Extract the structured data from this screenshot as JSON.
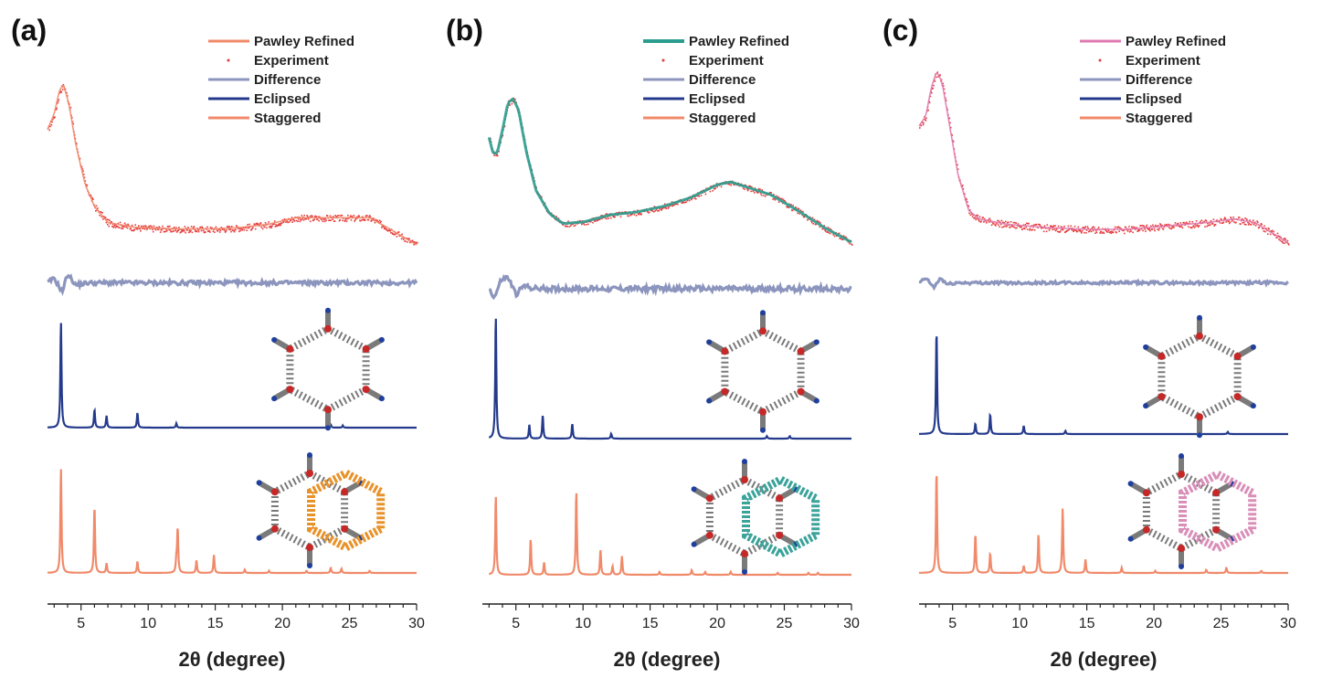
{
  "figure": {
    "xlabel": "2θ (degree)",
    "legend": [
      "Pawley Refined",
      "Experiment",
      "Difference",
      "Eclipsed",
      "Staggered"
    ]
  },
  "chart_data": [
    {
      "panel_label": "(a)",
      "type": "line",
      "xlabel": "2θ (degree)",
      "xlim": [
        2.5,
        30
      ],
      "xticks": [
        5,
        10,
        15,
        20,
        25,
        30
      ],
      "grid": false,
      "legend_placement": "top-center",
      "colors": {
        "pawley": "#f08a6a",
        "experiment": "#e53b3b",
        "difference": "#8c95bd",
        "eclipsed": "#243a8c",
        "staggered": "#f08a6a",
        "stagger_model": "#e8922a"
      },
      "experiment_envelope": {
        "x": [
          2.5,
          3.0,
          3.4,
          3.7,
          4.1,
          4.6,
          5.3,
          6.0,
          7.0,
          9.0,
          12.0,
          15.0,
          17.0,
          19.0,
          21.0,
          23.0,
          25.0,
          26.5,
          28.0,
          29.0,
          30.0
        ],
        "y": [
          0.72,
          0.82,
          0.97,
          1.0,
          0.88,
          0.63,
          0.38,
          0.24,
          0.14,
          0.11,
          0.1,
          0.1,
          0.11,
          0.13,
          0.17,
          0.17,
          0.17,
          0.17,
          0.1,
          0.05,
          0.0
        ]
      },
      "difference_envelope": {
        "x": [
          2.5,
          3.0,
          3.6,
          4.0,
          4.6,
          5.5,
          30.0
        ],
        "y": [
          0.5,
          0.7,
          0.1,
          0.9,
          0.4,
          0.5,
          0.5
        ]
      },
      "eclipsed_peaks": {
        "x": [
          3.5,
          6.0,
          6.9,
          9.2,
          12.1,
          23.6,
          24.5
        ],
        "y": [
          1.0,
          0.17,
          0.11,
          0.14,
          0.04,
          0.03,
          0.02
        ]
      },
      "staggered_peaks": {
        "x": [
          3.5,
          6.0,
          6.9,
          9.2,
          12.1,
          12.2,
          13.6,
          14.9,
          17.2,
          19.0,
          21.8,
          23.6,
          24.4,
          26.5
        ],
        "y": [
          1.0,
          0.64,
          0.09,
          0.11,
          0.12,
          0.42,
          0.12,
          0.17,
          0.03,
          0.02,
          0.02,
          0.05,
          0.04,
          0.02
        ]
      }
    },
    {
      "panel_label": "(b)",
      "type": "line",
      "xlabel": "2θ (degree)",
      "xlim": [
        2.5,
        30
      ],
      "xticks": [
        5,
        10,
        15,
        20,
        25,
        30
      ],
      "grid": false,
      "legend_placement": "top-center",
      "colors": {
        "pawley": "#2a9d8f",
        "experiment": "#e53b3b",
        "difference": "#8c95bd",
        "eclipsed": "#243a8c",
        "staggered": "#f08a6a",
        "stagger_model": "#3aa39a"
      },
      "experiment_envelope": {
        "x": [
          3.0,
          3.3,
          3.6,
          4.0,
          4.4,
          4.8,
          5.2,
          5.8,
          6.5,
          7.5,
          8.5,
          10.0,
          12.0,
          14.0,
          16.0,
          18.0,
          20.0,
          21.0,
          22.0,
          24.0,
          26.0,
          28.0,
          30.0
        ],
        "y": [
          0.73,
          0.62,
          0.62,
          0.78,
          0.97,
          1.0,
          0.92,
          0.62,
          0.36,
          0.2,
          0.13,
          0.14,
          0.19,
          0.21,
          0.25,
          0.31,
          0.4,
          0.42,
          0.39,
          0.33,
          0.22,
          0.1,
          0.0
        ]
      },
      "difference_envelope": {
        "x": [
          3.0,
          3.4,
          3.9,
          4.4,
          5.0,
          5.6,
          6.5,
          30.0
        ],
        "y": [
          0.5,
          0.2,
          0.8,
          0.9,
          0.3,
          0.6,
          0.5,
          0.5
        ]
      },
      "eclipsed_peaks": {
        "x": [
          3.5,
          6.0,
          7.0,
          9.2,
          12.1,
          23.7,
          25.4
        ],
        "y": [
          1.0,
          0.11,
          0.19,
          0.12,
          0.04,
          0.02,
          0.02
        ]
      },
      "staggered_peaks": {
        "x": [
          3.5,
          6.1,
          7.1,
          9.5,
          11.3,
          12.2,
          12.9,
          15.7,
          18.1,
          19.1,
          21.0,
          24.5,
          26.8,
          27.5
        ],
        "y": [
          0.83,
          0.37,
          0.13,
          0.87,
          0.26,
          0.09,
          0.19,
          0.03,
          0.05,
          0.03,
          0.03,
          0.02,
          0.02,
          0.02
        ]
      }
    },
    {
      "panel_label": "(c)",
      "type": "line",
      "xlabel": "2θ (degree)",
      "xlim": [
        2.5,
        30
      ],
      "xticks": [
        5,
        10,
        15,
        20,
        25,
        30
      ],
      "grid": false,
      "legend_placement": "top-center",
      "colors": {
        "pawley": "#e07ab0",
        "experiment": "#e53b3b",
        "difference": "#8c95bd",
        "eclipsed": "#243a8c",
        "staggered": "#f08a6a",
        "stagger_model": "#d98fb8"
      },
      "experiment_envelope": {
        "x": [
          2.5,
          3.0,
          3.4,
          3.8,
          4.2,
          4.7,
          5.4,
          6.2,
          7.0,
          9.0,
          12.0,
          15.0,
          18.0,
          21.0,
          24.0,
          26.0,
          27.5,
          29.0,
          30.0
        ],
        "y": [
          0.68,
          0.74,
          0.9,
          1.0,
          0.94,
          0.72,
          0.4,
          0.19,
          0.14,
          0.11,
          0.09,
          0.08,
          0.08,
          0.1,
          0.12,
          0.14,
          0.12,
          0.05,
          0.0
        ]
      },
      "difference_envelope": {
        "x": [
          2.5,
          3.0,
          3.6,
          4.1,
          4.6,
          5.3,
          30.0
        ],
        "y": [
          0.5,
          0.8,
          0.2,
          0.8,
          0.4,
          0.5,
          0.5
        ]
      },
      "eclipsed_peaks": {
        "x": [
          3.8,
          6.7,
          7.8,
          10.3,
          13.4,
          25.5
        ],
        "y": [
          1.0,
          0.1,
          0.19,
          0.08,
          0.03,
          0.02
        ]
      },
      "staggered_peaks": {
        "x": [
          3.8,
          6.7,
          7.8,
          10.3,
          11.4,
          13.2,
          14.9,
          17.6,
          20.1,
          23.9,
          25.4,
          28.0
        ],
        "y": [
          1.0,
          0.38,
          0.19,
          0.07,
          0.37,
          0.62,
          0.13,
          0.05,
          0.02,
          0.03,
          0.05,
          0.02
        ]
      }
    }
  ]
}
